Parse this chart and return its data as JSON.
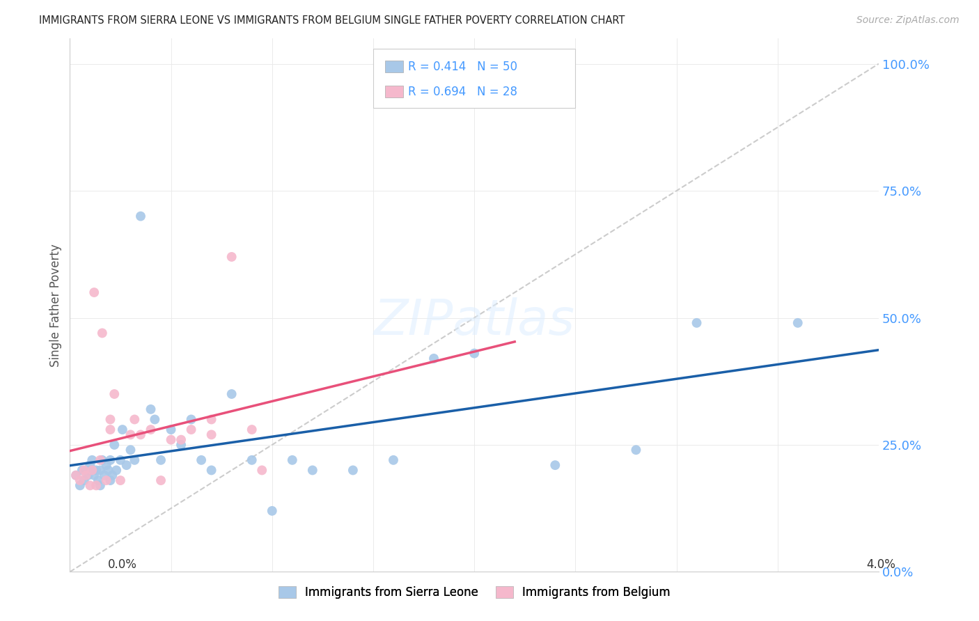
{
  "title": "IMMIGRANTS FROM SIERRA LEONE VS IMMIGRANTS FROM BELGIUM SINGLE FATHER POVERTY CORRELATION CHART",
  "source": "Source: ZipAtlas.com",
  "ylabel": "Single Father Poverty",
  "yticks_labels": [
    "0.0%",
    "25.0%",
    "50.0%",
    "75.0%",
    "100.0%"
  ],
  "ytick_vals": [
    0.0,
    0.25,
    0.5,
    0.75,
    1.0
  ],
  "xticks_labels": [
    "0.0%",
    "",
    "",
    "",
    "",
    "",
    "",
    "",
    "4.0%"
  ],
  "xtick_vals": [
    0.0,
    0.005,
    0.01,
    0.015,
    0.02,
    0.025,
    0.03,
    0.035,
    0.04
  ],
  "xlim": [
    0.0,
    0.04
  ],
  "ylim": [
    0.0,
    1.05
  ],
  "legend_r1_text": "R = 0.414   N = 50",
  "legend_r2_text": "R = 0.694   N = 28",
  "sierra_leone_color": "#a8c8e8",
  "belgium_color": "#f5b8cc",
  "sierra_leone_line_color": "#1a5fa8",
  "belgium_line_color": "#e8507a",
  "diagonal_color": "#cccccc",
  "watermark_text": "ZIPatlas",
  "watermark_color": "#ddeeff",
  "background_color": "#ffffff",
  "grid_color": "#e8e8e8",
  "ytick_color": "#4499ff",
  "title_color": "#222222",
  "source_color": "#aaaaaa",
  "bottom_legend_label1": "Immigrants from Sierra Leone",
  "bottom_legend_label2": "Immigrants from Belgium",
  "sierra_leone_x": [
    0.0003,
    0.0005,
    0.0006,
    0.0007,
    0.0008,
    0.0009,
    0.001,
    0.001,
    0.0011,
    0.0012,
    0.0013,
    0.0014,
    0.0015,
    0.0015,
    0.0016,
    0.0017,
    0.0018,
    0.0019,
    0.002,
    0.002,
    0.0021,
    0.0022,
    0.0023,
    0.0025,
    0.0026,
    0.0028,
    0.003,
    0.0032,
    0.0035,
    0.004,
    0.0042,
    0.0045,
    0.005,
    0.0055,
    0.006,
    0.0065,
    0.007,
    0.008,
    0.009,
    0.01,
    0.011,
    0.012,
    0.014,
    0.016,
    0.018,
    0.02,
    0.024,
    0.028,
    0.031,
    0.036
  ],
  "sierra_leone_y": [
    0.19,
    0.17,
    0.2,
    0.18,
    0.2,
    0.19,
    0.21,
    0.2,
    0.22,
    0.19,
    0.2,
    0.18,
    0.2,
    0.17,
    0.22,
    0.19,
    0.21,
    0.2,
    0.22,
    0.18,
    0.19,
    0.25,
    0.2,
    0.22,
    0.28,
    0.21,
    0.24,
    0.22,
    0.7,
    0.32,
    0.3,
    0.22,
    0.28,
    0.25,
    0.3,
    0.22,
    0.2,
    0.35,
    0.22,
    0.12,
    0.22,
    0.2,
    0.2,
    0.22,
    0.42,
    0.43,
    0.21,
    0.24,
    0.49,
    0.49
  ],
  "belgium_x": [
    0.0003,
    0.0005,
    0.0007,
    0.0008,
    0.001,
    0.0011,
    0.0012,
    0.0013,
    0.0015,
    0.0016,
    0.0018,
    0.002,
    0.002,
    0.0022,
    0.0025,
    0.003,
    0.0032,
    0.0035,
    0.004,
    0.0045,
    0.005,
    0.0055,
    0.006,
    0.007,
    0.007,
    0.008,
    0.009,
    0.0095
  ],
  "belgium_y": [
    0.19,
    0.18,
    0.2,
    0.19,
    0.17,
    0.2,
    0.55,
    0.17,
    0.22,
    0.47,
    0.18,
    0.3,
    0.28,
    0.35,
    0.18,
    0.27,
    0.3,
    0.27,
    0.28,
    0.18,
    0.26,
    0.26,
    0.28,
    0.3,
    0.27,
    0.62,
    0.28,
    0.2
  ]
}
